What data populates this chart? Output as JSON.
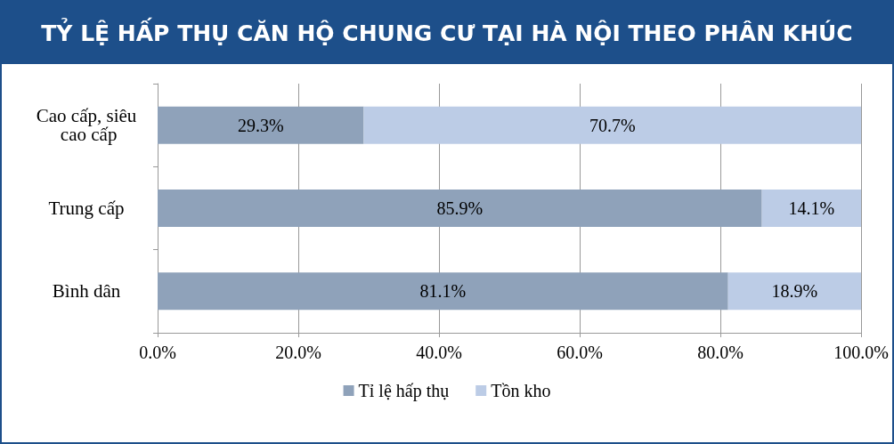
{
  "chart_data": {
    "type": "bar",
    "title": "TỶ LỆ HẤP THỤ CĂN HỘ CHUNG CƯ TẠI HÀ NỘI THEO PHÂN KHÚC",
    "orientation": "horizontal",
    "stacked": true,
    "categories": [
      "Cao cấp, siêu cao cấp",
      "Trung cấp",
      "Bình dân"
    ],
    "series": [
      {
        "name": "Tỉ lệ hấp thụ",
        "color": "#8fa2ba",
        "values": [
          29.3,
          85.9,
          81.1
        ],
        "value_labels": [
          "29.3%",
          "85.9%",
          "81.1%"
        ]
      },
      {
        "name": "Tồn kho",
        "color": "#bccce6",
        "values": [
          70.7,
          14.1,
          18.9
        ],
        "value_labels": [
          "70.7%",
          "14.1%",
          "18.9%"
        ]
      }
    ],
    "xlim": [
      0,
      100
    ],
    "xticks": [
      {
        "value": 0,
        "label": "0.0%"
      },
      {
        "value": 20,
        "label": "20.0%"
      },
      {
        "value": 40,
        "label": "40.0%"
      },
      {
        "value": 60,
        "label": "60.0%"
      },
      {
        "value": 80,
        "label": "80.0%"
      },
      {
        "value": 100,
        "label": "100.0%"
      }
    ],
    "grid": "x",
    "legend": "bottom"
  }
}
